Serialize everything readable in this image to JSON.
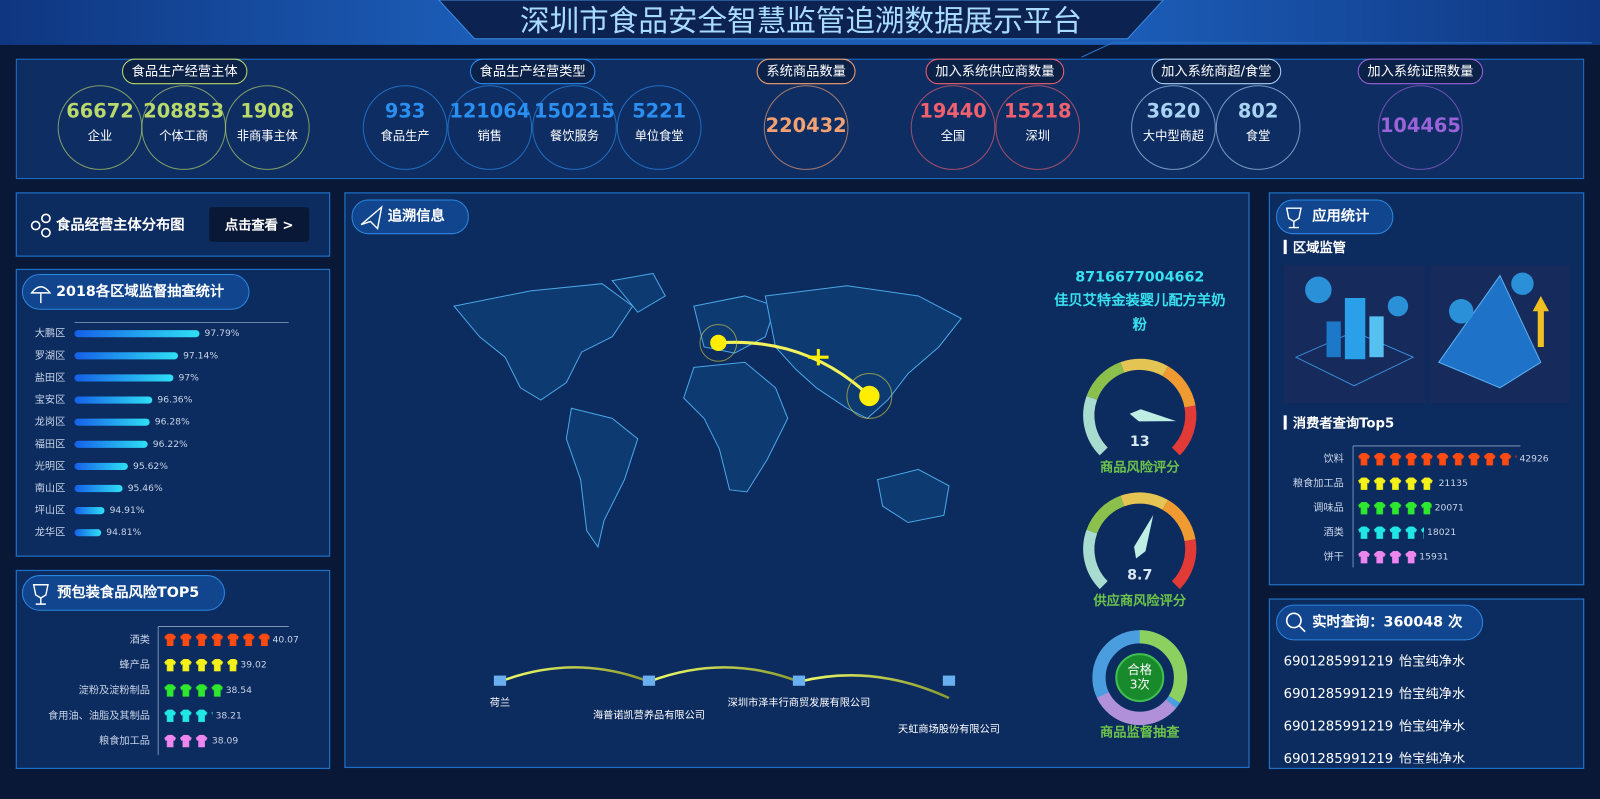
{
  "header": {
    "title": "深圳市食品安全智慧监管追溯数据展示平台"
  },
  "stats": [
    {
      "label": "食品生产经营主体",
      "color": "#b9d96c",
      "items": [
        {
          "value": 66672,
          "label": "企业"
        },
        {
          "value": 208853,
          "label": "个体工商"
        },
        {
          "value": 1908,
          "label": "非商事主体"
        }
      ]
    },
    {
      "label": "食品生产经营类型",
      "color": "#2a8ff0",
      "items": [
        {
          "value": 933,
          "label": "食品生产"
        },
        {
          "value": 121064,
          "label": "销售"
        },
        {
          "value": 150215,
          "label": "餐饮服务"
        },
        {
          "value": 5221,
          "label": "单位食堂"
        }
      ]
    },
    {
      "label": "系统商品数量",
      "color": "#f3a172",
      "items": [
        {
          "value": 220432
        }
      ]
    },
    {
      "label": "加入系统供应商数量",
      "color": "#f0606e",
      "items": [
        {
          "value": 19440,
          "label": "全国"
        },
        {
          "value": 15218,
          "label": "深圳"
        }
      ]
    },
    {
      "label": "加入系统商超/食堂",
      "color": "#a9d3f3",
      "items": [
        {
          "value": 3620,
          "label": "大中型商超"
        },
        {
          "value": 802,
          "label": "食堂"
        }
      ]
    },
    {
      "label": "加入系统证照数量",
      "color": "#9b63d9",
      "items": [
        {
          "value": 104465
        }
      ]
    }
  ],
  "entity_map": {
    "title": "食品经营主体分布图",
    "button": "点击查看 >"
  },
  "trace": {
    "title": "追溯信息",
    "code": "8716677004662",
    "product": "佳贝艾特金装婴儿配方羊奶粉",
    "route": [
      "荷兰",
      "海普诺凯营养品有限公司",
      "深圳市泽丰行商贸发展有限公司",
      "天虹商场股份有限公司"
    ],
    "inspection": {
      "title": "商品监督抽查",
      "result": "合格",
      "count": "3次"
    }
  },
  "app_stats": {
    "title": "应用统计",
    "region": "区域监管"
  },
  "realtime": {
    "title": "实时查询：360048 次",
    "rows": [
      [
        "6901285991219",
        "怡宝纯净水"
      ],
      [
        "6901285991219",
        "怡宝纯净水"
      ],
      [
        "6901285991219",
        "怡宝纯净水"
      ],
      [
        "6901285991219",
        "怡宝纯净水"
      ]
    ]
  },
  "chart_data": [
    {
      "type": "bar",
      "title": "2018各区域监督抽查统计",
      "categories": [
        "大鹏区",
        "罗湖区",
        "盐田区",
        "宝安区",
        "龙岗区",
        "福田区",
        "光明区",
        "南山区",
        "坪山区",
        "龙华区"
      ],
      "values": [
        97.79,
        97.14,
        97,
        96.36,
        96.28,
        96.22,
        95.62,
        95.46,
        94.91,
        94.81
      ],
      "value_labels": [
        "97.79%",
        "97.14%",
        "97%",
        "96.36%",
        "96.28%",
        "96.22%",
        "95.62%",
        "95.46%",
        "94.91%",
        "94.81%"
      ],
      "xlim": [
        94,
        100.5
      ]
    },
    {
      "type": "pictograph",
      "title": "预包装食品风险TOP5",
      "categories": [
        "酒类",
        "蜂产品",
        "淀粉及淀粉制品",
        "食用油、油脂及其制品",
        "粮食加工品"
      ],
      "values": [
        40.07,
        39.02,
        38.54,
        38.21,
        38.09
      ],
      "colors": [
        "#ff4a12",
        "#f4f01a",
        "#2ee82e",
        "#21e6e6",
        "#ef86ef"
      ],
      "xlim": [
        36.6,
        40.7
      ]
    },
    {
      "type": "pictograph",
      "title": "消费者查询Top5",
      "categories": [
        "饮料",
        "粮食加工品",
        "调味品",
        "酒类",
        "饼干"
      ],
      "values": [
        42926,
        21135,
        20071,
        18021,
        15931
      ],
      "colors": [
        "#ff4a12",
        "#f4f01a",
        "#2ee82e",
        "#21e6e6",
        "#ef86ef"
      ],
      "xlim": [
        0,
        44000
      ]
    },
    {
      "type": "gauge",
      "title": "商品风险评分",
      "value": 13,
      "lim": [
        0,
        15
      ]
    },
    {
      "type": "gauge",
      "title": "供应商风险评分",
      "value": 8.7,
      "lim": [
        0,
        15
      ]
    }
  ]
}
